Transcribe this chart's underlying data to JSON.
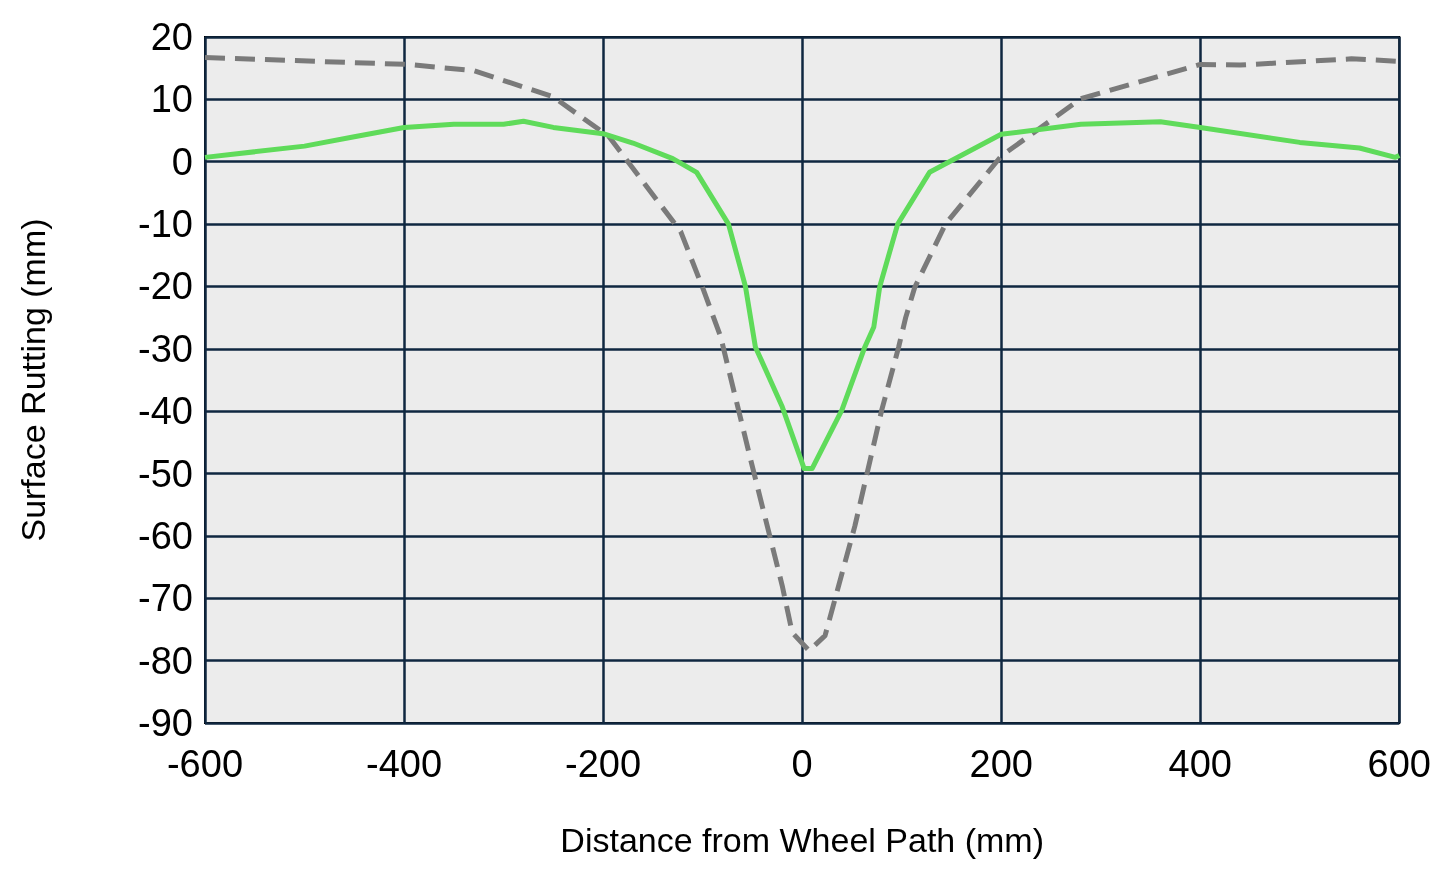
{
  "chart_data": {
    "type": "line",
    "xlabel": "Distance from Wheel Path (mm)",
    "ylabel": "Surface Rutting (mm)",
    "xlim": [
      -600,
      600
    ],
    "xticks": [
      -600,
      -400,
      -200,
      0,
      200,
      400,
      600
    ],
    "ylim": [
      -90,
      20
    ],
    "yticks": [
      -90,
      -80,
      -70,
      -60,
      -50,
      -40,
      -30,
      -20,
      -10,
      0,
      10,
      20
    ],
    "grid": true,
    "marker": "none",
    "series": [
      {
        "color": "#7a7a7a",
        "line_style": "dashed",
        "x": [
          -600,
          -396,
          -330,
          -250,
          -194,
          -122,
          -100,
          -82,
          -50,
          -20,
          -10,
          7,
          23,
          53,
          80,
          97,
          104,
          113,
          144,
          200,
          280,
          400,
          440,
          552,
          600
        ],
        "values": [
          16.7,
          15.6,
          14.6,
          10.4,
          4,
          -11.2,
          -20.2,
          -28,
          -48.9,
          -68,
          -75.5,
          -78.4,
          -76,
          -58.4,
          -39.8,
          -29.7,
          -25,
          -20.2,
          -10,
          0.9,
          10.1,
          15.6,
          15.5,
          16.5,
          16.1
        ]
      },
      {
        "color": "#5fdb5a",
        "line_style": "solid",
        "x": [
          -600,
          -500,
          -450,
          -400,
          -350,
          -300,
          -280,
          -250,
          -200,
          -170,
          -130,
          -106,
          -74,
          -57,
          -47,
          -20,
          2,
          10,
          40,
          63,
          72,
          78,
          96,
          128,
          200,
          280,
          360,
          400,
          500,
          560,
          596,
          600
        ],
        "values": [
          0.7,
          2.5,
          4,
          5.5,
          6,
          6,
          6.5,
          5.5,
          4.5,
          3,
          0.5,
          -1.7,
          -10,
          -20,
          -29.7,
          -39.3,
          -49.2,
          -49.2,
          -39.8,
          -29.7,
          -26.5,
          -20,
          -10,
          -1.7,
          4.4,
          6,
          6.4,
          5.5,
          3.1,
          2.2,
          0.7,
          1
        ]
      }
    ]
  }
}
